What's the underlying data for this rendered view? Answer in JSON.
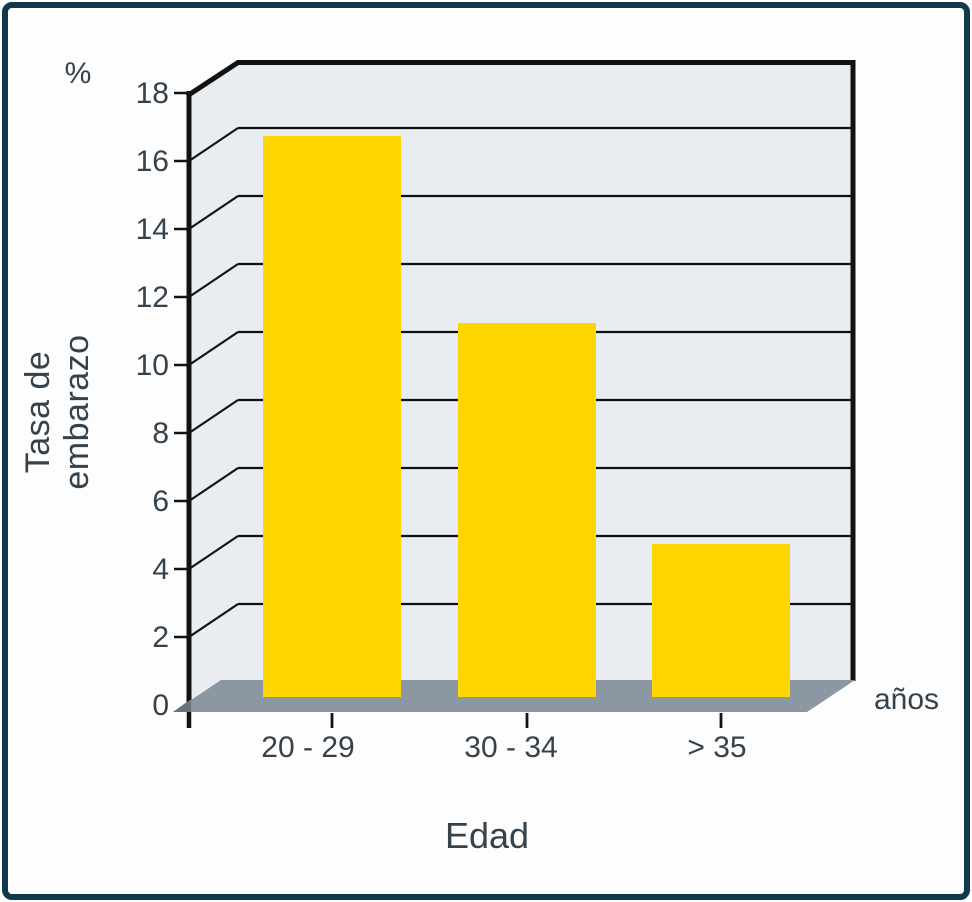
{
  "chart_data": {
    "type": "bar",
    "title": "",
    "categories": [
      "20 - 29",
      "30 - 34",
      "> 35"
    ],
    "values": [
      16.5,
      11,
      4.5
    ],
    "yticks": [
      0,
      2,
      4,
      6,
      8,
      10,
      12,
      14,
      16,
      18
    ],
    "ylim": [
      0,
      18
    ],
    "ylabel": "Tasa de embarazo",
    "y_unit_label": "%",
    "xlabel": "Edad",
    "x_unit_label": "años",
    "grid": true,
    "legend": "none",
    "style": "3d-perspective",
    "colors": {
      "bar": "#ffd500",
      "wall": "#e9edf1",
      "floor": "#8b97a2",
      "floor_shadow": "#68737d",
      "line": "#121212",
      "text": "#36424b",
      "frame_border": "#10394a",
      "background": "#fdfdfd"
    }
  }
}
